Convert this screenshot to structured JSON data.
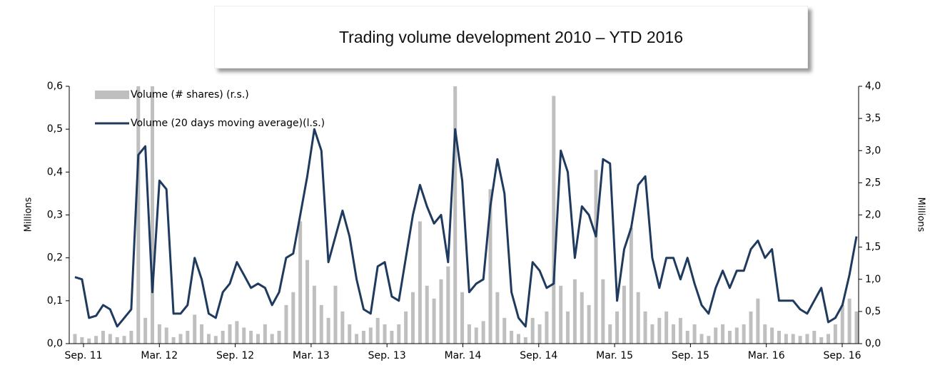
{
  "chart_data": {
    "type": "combo",
    "title": "Trading volume development 2010 – YTD 2016",
    "ylabel": "Millions",
    "y2label": "Millions",
    "xtick_labels": [
      "Sep. 11",
      "Mar. 12",
      "Sep. 12",
      "Mar. 13",
      "Sep. 13",
      "Mar. 14",
      "Sep. 14",
      "Mar. 15",
      "Sep. 15",
      "Mar. 16",
      "Sep. 16"
    ],
    "ylim": [
      0,
      0.6
    ],
    "yticks": [
      {
        "value": 0,
        "label": "0,0"
      },
      {
        "value": 0.1,
        "label": "0,1"
      },
      {
        "value": 0.2,
        "label": "0,2"
      },
      {
        "value": 0.3,
        "label": "0,3"
      },
      {
        "value": 0.4,
        "label": "0,4"
      },
      {
        "value": 0.5,
        "label": "0,5"
      },
      {
        "value": 0.6,
        "label": "0,6"
      }
    ],
    "y2lim": [
      0,
      4
    ],
    "y2ticks": [
      {
        "value": 0,
        "label": "0,0"
      },
      {
        "value": 0.5,
        "label": "0,5"
      },
      {
        "value": 1,
        "label": "1,0"
      },
      {
        "value": 1.5,
        "label": "1,5"
      },
      {
        "value": 2,
        "label": "2,0"
      },
      {
        "value": 2.5,
        "label": "2,5"
      },
      {
        "value": 3,
        "label": "3,0"
      },
      {
        "value": 3.5,
        "label": "3,5"
      },
      {
        "value": 4,
        "label": "4,0"
      }
    ],
    "series": [
      {
        "name": "Volume (# shares) (r.s.)",
        "type": "bar",
        "axis": "y2",
        "color": "#bfbfbf",
        "values": [
          0.15,
          0.1,
          0.08,
          0.12,
          0.2,
          0.15,
          0.1,
          0.12,
          0.2,
          4.0,
          0.4,
          4.0,
          0.3,
          0.25,
          0.1,
          0.15,
          0.2,
          0.45,
          0.3,
          0.15,
          0.12,
          0.2,
          0.3,
          0.35,
          0.25,
          0.2,
          0.15,
          0.3,
          0.15,
          0.2,
          0.6,
          0.8,
          1.9,
          1.3,
          0.9,
          0.6,
          0.4,
          0.9,
          0.5,
          0.3,
          0.15,
          0.2,
          0.25,
          0.4,
          0.3,
          0.2,
          0.3,
          0.5,
          0.8,
          1.9,
          0.9,
          0.7,
          1.0,
          1.2,
          4.0,
          0.8,
          0.3,
          0.25,
          0.35,
          2.4,
          0.8,
          0.4,
          0.2,
          0.15,
          0.1,
          0.4,
          0.3,
          0.5,
          3.85,
          0.9,
          0.5,
          1.0,
          0.8,
          0.6,
          2.7,
          1.0,
          0.3,
          0.5,
          0.9,
          1.8,
          0.8,
          0.5,
          0.3,
          0.4,
          0.5,
          0.3,
          0.4,
          0.2,
          0.3,
          0.15,
          0.12,
          0.25,
          0.3,
          0.2,
          0.25,
          0.3,
          0.5,
          0.7,
          0.3,
          0.25,
          0.2,
          0.15,
          0.15,
          0.12,
          0.15,
          0.2,
          0.1,
          0.15,
          0.3,
          0.6,
          0.7,
          0.5
        ]
      },
      {
        "name": "Volume (20 days moving average)(l.s.)",
        "type": "line",
        "color": "#1f3a5f",
        "values": [
          0.155,
          0.15,
          0.06,
          0.065,
          0.09,
          0.08,
          0.04,
          0.06,
          0.08,
          0.44,
          0.46,
          0.12,
          0.38,
          0.36,
          0.07,
          0.07,
          0.09,
          0.2,
          0.15,
          0.07,
          0.06,
          0.12,
          0.14,
          0.19,
          0.16,
          0.13,
          0.14,
          0.13,
          0.09,
          0.12,
          0.2,
          0.21,
          0.3,
          0.39,
          0.5,
          0.45,
          0.19,
          0.25,
          0.31,
          0.25,
          0.15,
          0.08,
          0.07,
          0.18,
          0.19,
          0.11,
          0.1,
          0.2,
          0.3,
          0.37,
          0.32,
          0.28,
          0.3,
          0.19,
          0.5,
          0.38,
          0.12,
          0.14,
          0.15,
          0.32,
          0.43,
          0.35,
          0.12,
          0.06,
          0.04,
          0.19,
          0.17,
          0.13,
          0.14,
          0.45,
          0.4,
          0.2,
          0.32,
          0.3,
          0.25,
          0.43,
          0.42,
          0.1,
          0.22,
          0.27,
          0.37,
          0.39,
          0.2,
          0.13,
          0.2,
          0.2,
          0.15,
          0.2,
          0.14,
          0.09,
          0.07,
          0.13,
          0.17,
          0.13,
          0.17,
          0.17,
          0.22,
          0.24,
          0.2,
          0.22,
          0.1,
          0.1,
          0.1,
          0.08,
          0.07,
          0.1,
          0.13,
          0.05,
          0.06,
          0.09,
          0.16,
          0.25
        ]
      }
    ]
  }
}
